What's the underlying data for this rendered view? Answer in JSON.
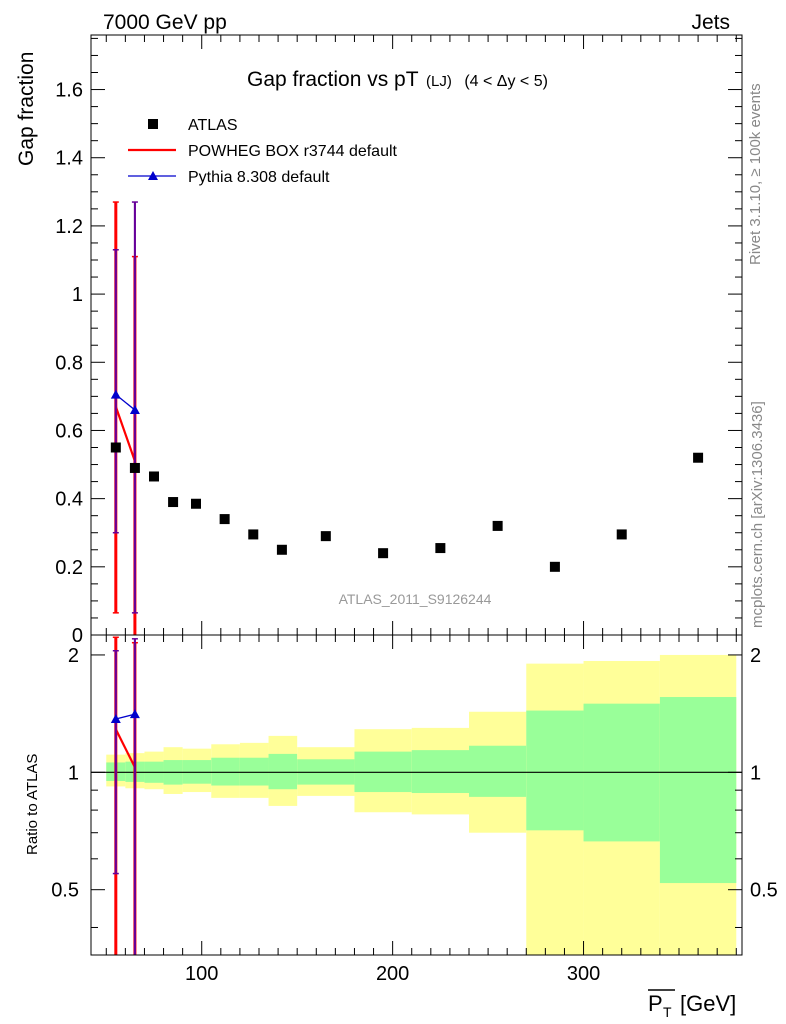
{
  "header": {
    "left": "7000 GeV pp",
    "right": "Jets"
  },
  "side_labels": {
    "rivet": "Rivet 3.1.10, ≥ 100k events",
    "mcplots": "mcplots.cern.ch [arXiv:1306.3436]"
  },
  "chart_data": {
    "type": "scatter",
    "title_main": "Gap fraction vs pT",
    "title_sub": "(LJ)",
    "title_range": "(4 < Δy < 5)",
    "watermark": "ATLAS_2011_S9126244",
    "ylabel": "Gap fraction",
    "ratio_ylabel": "Ratio to ATLAS",
    "xlabel_sym": "P",
    "xlabel_sub": "T",
    "xlabel_unit": "[GeV]",
    "xlim": [
      42,
      383
    ],
    "ylim": [
      0,
      1.76
    ],
    "ratio_ylim": [
      0.34,
      2.25
    ],
    "xticks": [
      100,
      200,
      300
    ],
    "yticks": [
      0,
      0.2,
      0.4,
      0.6,
      0.8,
      1,
      1.2,
      1.4,
      1.6
    ],
    "ratio_yticks": [
      0.5,
      1,
      2
    ],
    "grid": false,
    "legend_position": "top-left",
    "legend": [
      {
        "name": "ATLAS",
        "marker": "square",
        "color": "#000000"
      },
      {
        "name": "POWHEG BOX r3744 default",
        "marker": "line",
        "color": "#ff0000"
      },
      {
        "name": "Pythia 8.308 default",
        "marker": "triangle",
        "color": "#0000cc"
      }
    ],
    "data": [
      {
        "x": 55,
        "y": 0.55
      },
      {
        "x": 65,
        "y": 0.49
      },
      {
        "x": 75,
        "y": 0.465
      },
      {
        "x": 85,
        "y": 0.39
      },
      {
        "x": 97,
        "y": 0.385
      },
      {
        "x": 112,
        "y": 0.34
      },
      {
        "x": 127,
        "y": 0.295
      },
      {
        "x": 142,
        "y": 0.25
      },
      {
        "x": 165,
        "y": 0.29
      },
      {
        "x": 195,
        "y": 0.24
      },
      {
        "x": 225,
        "y": 0.255
      },
      {
        "x": 255,
        "y": 0.32
      },
      {
        "x": 285,
        "y": 0.2
      },
      {
        "x": 320,
        "y": 0.295
      },
      {
        "x": 360,
        "y": 0.52
      }
    ],
    "data_bins": [
      {
        "lo": 50,
        "hi": 60,
        "inner": [
          0.95,
          1.06
        ],
        "outer": [
          0.92,
          1.11
        ]
      },
      {
        "lo": 60,
        "hi": 70,
        "inner": [
          0.945,
          1.065
        ],
        "outer": [
          0.91,
          1.12
        ]
      },
      {
        "lo": 70,
        "hi": 80,
        "inner": [
          0.94,
          1.065
        ],
        "outer": [
          0.905,
          1.13
        ]
      },
      {
        "lo": 80,
        "hi": 90,
        "inner": [
          0.93,
          1.075
        ],
        "outer": [
          0.88,
          1.16
        ]
      },
      {
        "lo": 90,
        "hi": 105,
        "inner": [
          0.935,
          1.075
        ],
        "outer": [
          0.89,
          1.15
        ]
      },
      {
        "lo": 105,
        "hi": 120,
        "inner": [
          0.925,
          1.09
        ],
        "outer": [
          0.86,
          1.18
        ]
      },
      {
        "lo": 120,
        "hi": 135,
        "inner": [
          0.925,
          1.09
        ],
        "outer": [
          0.86,
          1.19
        ]
      },
      {
        "lo": 135,
        "hi": 150,
        "inner": [
          0.905,
          1.115
        ],
        "outer": [
          0.82,
          1.24
        ]
      },
      {
        "lo": 150,
        "hi": 180,
        "inner": [
          0.93,
          1.08
        ],
        "outer": [
          0.87,
          1.16
        ]
      },
      {
        "lo": 180,
        "hi": 210,
        "inner": [
          0.89,
          1.13
        ],
        "outer": [
          0.79,
          1.29
        ]
      },
      {
        "lo": 210,
        "hi": 240,
        "inner": [
          0.885,
          1.14
        ],
        "outer": [
          0.78,
          1.3
        ]
      },
      {
        "lo": 240,
        "hi": 270,
        "inner": [
          0.865,
          1.17
        ],
        "outer": [
          0.7,
          1.43
        ]
      },
      {
        "lo": 270,
        "hi": 300,
        "inner": [
          0.71,
          1.44
        ],
        "outer": [
          0.34,
          1.9
        ]
      },
      {
        "lo": 300,
        "hi": 340,
        "inner": [
          0.665,
          1.5
        ],
        "outer": [
          0.34,
          1.93
        ]
      },
      {
        "lo": 340,
        "hi": 380,
        "inner": [
          0.52,
          1.56
        ],
        "outer": [
          0.34,
          2.0
        ]
      }
    ],
    "series": [
      {
        "name": "POWHEG BOX r3744 default",
        "color": "#ff0000",
        "x": [
          55,
          65
        ],
        "y": [
          0.67,
          0.51
        ],
        "err": [
          [
            0.065,
            1.27
          ],
          [
            0.0,
            1.11
          ]
        ],
        "ratio": [
          1.29,
          1.03
        ],
        "ratio_err": [
          [
            0.0,
            2.22
          ],
          [
            0.0,
            2.15
          ]
        ]
      },
      {
        "name": "Pythia 8.308 default",
        "color": "#0000cc",
        "x": [
          55,
          65
        ],
        "y": [
          0.705,
          0.66
        ],
        "err": [
          [
            0.3,
            1.13
          ],
          [
            0.065,
            1.27
          ]
        ],
        "ratio": [
          1.37,
          1.41
        ],
        "ratio_err": [
          [
            0.55,
            2.05
          ],
          [
            0.0,
            2.2
          ]
        ]
      }
    ]
  }
}
